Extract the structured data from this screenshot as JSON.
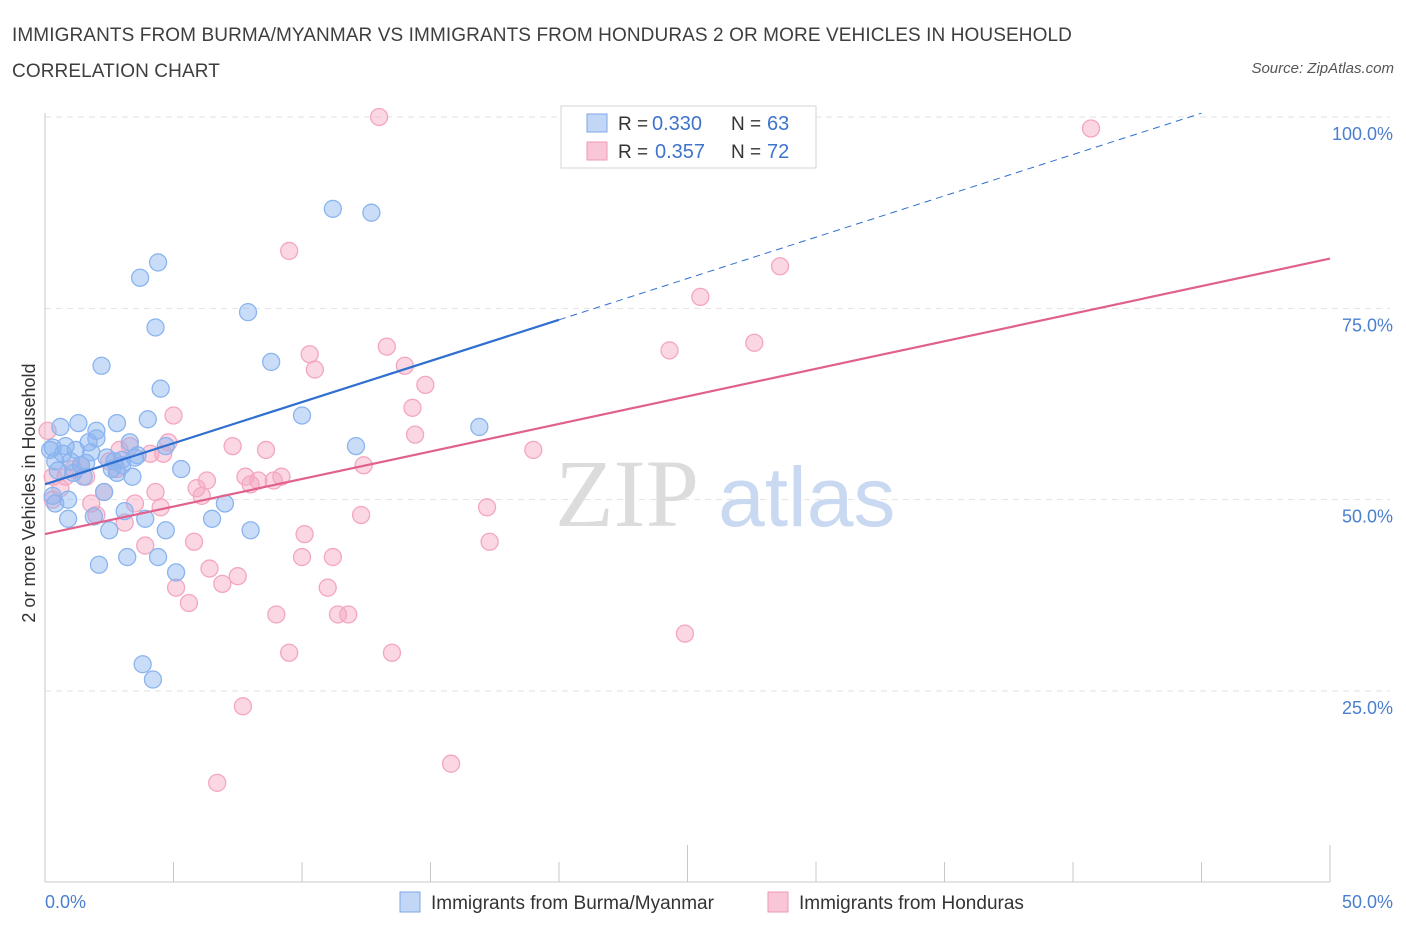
{
  "header": {
    "title": "IMMIGRANTS FROM BURMA/MYANMAR VS IMMIGRANTS FROM HONDURAS 2 OR MORE VEHICLES IN HOUSEHOLD CORRELATION CHART",
    "source": "Source: ZipAtlas.com"
  },
  "watermark": {
    "zip": "ZIP",
    "atlas": "atlas"
  },
  "chart_data": {
    "type": "scatter",
    "xlabel": "",
    "ylabel": "2 or more Vehicles in Household",
    "xlim": [
      0,
      50
    ],
    "ylim": [
      0,
      105
    ],
    "x_tick_labels": [
      "0.0%",
      "50.0%"
    ],
    "y_ticks": [
      {
        "value": 25,
        "label": "25.0%"
      },
      {
        "value": 50,
        "label": "50.0%"
      },
      {
        "value": 75,
        "label": "75.0%"
      },
      {
        "value": 100,
        "label": "100.0%"
      }
    ],
    "grid": "horizontal dashed",
    "legend_position": "top-center",
    "stats_legend": [
      {
        "r_label": "R =",
        "r_value": "0.330",
        "n_label": "N =",
        "n_value": "63"
      },
      {
        "r_label": "R =",
        "r_value": "0.357",
        "n_label": "N =",
        "n_value": "72"
      }
    ],
    "series": [
      {
        "name": "Immigrants from Burma/Myanmar",
        "color": "#8ab4ef",
        "line_color": "#2f6fcf",
        "trend": {
          "x0": 0,
          "y0": 52.0,
          "x1": 20,
          "y1": 73.5,
          "dashed_to_x": 45,
          "dashed_to_y": 100.5
        },
        "points": [
          [
            0.2,
            56.5
          ],
          [
            0.3,
            56.8
          ],
          [
            0.3,
            50.5
          ],
          [
            0.4,
            49.5
          ],
          [
            0.5,
            53.8
          ],
          [
            0.6,
            59.5
          ],
          [
            0.7,
            56.0
          ],
          [
            0.9,
            50.0
          ],
          [
            0.9,
            47.5
          ],
          [
            1.0,
            55.0
          ],
          [
            1.1,
            53.5
          ],
          [
            1.2,
            56.5
          ],
          [
            1.3,
            60.0
          ],
          [
            1.4,
            54.5
          ],
          [
            1.6,
            54.8
          ],
          [
            1.7,
            57.5
          ],
          [
            1.8,
            56.2
          ],
          [
            1.9,
            47.8
          ],
          [
            2.0,
            58.0
          ],
          [
            2.0,
            59.0
          ],
          [
            2.1,
            41.5
          ],
          [
            2.2,
            67.5
          ],
          [
            2.3,
            51.0
          ],
          [
            2.5,
            46.0
          ],
          [
            2.6,
            54.0
          ],
          [
            2.7,
            55.0
          ],
          [
            2.8,
            53.5
          ],
          [
            2.8,
            60.0
          ],
          [
            3.0,
            55.2
          ],
          [
            3.1,
            48.5
          ],
          [
            3.2,
            42.5
          ],
          [
            3.3,
            57.5
          ],
          [
            3.4,
            53.0
          ],
          [
            3.5,
            55.5
          ],
          [
            3.6,
            55.8
          ],
          [
            3.7,
            79.0
          ],
          [
            3.8,
            28.5
          ],
          [
            3.9,
            47.5
          ],
          [
            4.0,
            60.5
          ],
          [
            4.2,
            26.5
          ],
          [
            4.3,
            72.5
          ],
          [
            4.4,
            42.5
          ],
          [
            4.4,
            81.0
          ],
          [
            4.5,
            64.5
          ],
          [
            4.7,
            57.0
          ],
          [
            4.7,
            46.0
          ],
          [
            5.1,
            40.5
          ],
          [
            5.3,
            54.0
          ],
          [
            6.5,
            47.5
          ],
          [
            7.0,
            49.5
          ],
          [
            7.9,
            74.5
          ],
          [
            8.0,
            46.0
          ],
          [
            8.8,
            68.0
          ],
          [
            10.0,
            61.0
          ],
          [
            11.2,
            88.0
          ],
          [
            12.1,
            57.0
          ],
          [
            12.7,
            87.5
          ],
          [
            16.9,
            59.5
          ],
          [
            0.4,
            55.0
          ],
          [
            1.5,
            53.0
          ],
          [
            2.4,
            55.5
          ],
          [
            3.0,
            54.5
          ],
          [
            0.8,
            57.0
          ]
        ]
      },
      {
        "name": "Immigrants from Honduras",
        "color": "#f4a6c0",
        "line_color": "#e0608e",
        "trend": {
          "x0": 0,
          "y0": 45.5,
          "x1": 50,
          "y1": 81.5
        },
        "points": [
          [
            0.1,
            59.0
          ],
          [
            0.3,
            53.0
          ],
          [
            0.3,
            50.0
          ],
          [
            0.8,
            53.0
          ],
          [
            1.1,
            54.0
          ],
          [
            1.6,
            53.0
          ],
          [
            1.8,
            49.5
          ],
          [
            2.0,
            48.0
          ],
          [
            2.3,
            51.0
          ],
          [
            2.5,
            55.0
          ],
          [
            2.8,
            54.0
          ],
          [
            3.1,
            47.0
          ],
          [
            3.3,
            57.0
          ],
          [
            3.5,
            49.5
          ],
          [
            3.9,
            44.0
          ],
          [
            4.1,
            56.0
          ],
          [
            4.3,
            51.0
          ],
          [
            4.5,
            49.0
          ],
          [
            4.8,
            57.5
          ],
          [
            5.0,
            61.0
          ],
          [
            5.1,
            38.5
          ],
          [
            5.6,
            36.5
          ],
          [
            5.8,
            44.5
          ],
          [
            5.9,
            51.5
          ],
          [
            6.1,
            50.5
          ],
          [
            6.3,
            52.5
          ],
          [
            6.4,
            41.0
          ],
          [
            6.7,
            13.0
          ],
          [
            6.9,
            39.0
          ],
          [
            7.3,
            57.0
          ],
          [
            7.5,
            40.0
          ],
          [
            7.7,
            23.0
          ],
          [
            7.8,
            53.0
          ],
          [
            8.3,
            52.5
          ],
          [
            8.6,
            56.5
          ],
          [
            8.9,
            52.5
          ],
          [
            9.0,
            35.0
          ],
          [
            9.2,
            53.0
          ],
          [
            9.5,
            82.5
          ],
          [
            9.5,
            30.0
          ],
          [
            10.0,
            42.5
          ],
          [
            10.1,
            45.5
          ],
          [
            10.3,
            69.0
          ],
          [
            10.5,
            67.0
          ],
          [
            11.0,
            38.5
          ],
          [
            11.2,
            42.5
          ],
          [
            11.4,
            35.0
          ],
          [
            11.8,
            35.0
          ],
          [
            12.3,
            48.0
          ],
          [
            12.4,
            54.5
          ],
          [
            13.0,
            100.0
          ],
          [
            13.3,
            70.0
          ],
          [
            13.5,
            30.0
          ],
          [
            14.0,
            67.5
          ],
          [
            14.3,
            62.0
          ],
          [
            14.4,
            58.5
          ],
          [
            14.8,
            65.0
          ],
          [
            15.8,
            15.5
          ],
          [
            17.2,
            49.0
          ],
          [
            17.3,
            44.5
          ],
          [
            19.0,
            56.5
          ],
          [
            24.3,
            69.5
          ],
          [
            24.9,
            32.5
          ],
          [
            25.5,
            76.5
          ],
          [
            27.6,
            70.5
          ],
          [
            28.6,
            80.5
          ],
          [
            40.7,
            98.5
          ],
          [
            0.6,
            51.5
          ],
          [
            1.4,
            54.5
          ],
          [
            2.9,
            56.5
          ],
          [
            4.6,
            56.0
          ],
          [
            8.0,
            52.0
          ]
        ]
      }
    ]
  }
}
